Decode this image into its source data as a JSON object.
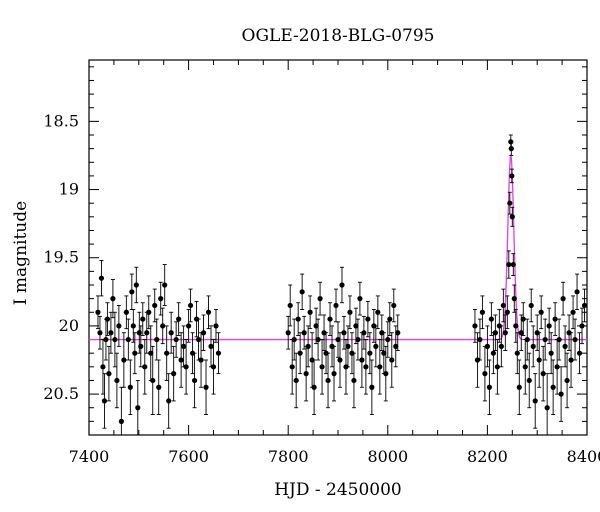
{
  "chart_data": {
    "type": "scatter",
    "title": "OGLE-2018-BLG-0795",
    "xlabel": "HJD - 2450000",
    "ylabel": "I magnitude",
    "xlim": [
      7400,
      8400
    ],
    "ylim": [
      20.8,
      18.05
    ],
    "y_inverted": true,
    "grid": false,
    "xticks": [
      7400,
      7600,
      7800,
      8000,
      8200,
      8400
    ],
    "xtick_labels": [
      "7400",
      "7600",
      "7800",
      "8000",
      "8200",
      "8400"
    ],
    "yticks": [
      18.5,
      19,
      19.5,
      20,
      20.5
    ],
    "ytick_labels": [
      "18.5",
      "19",
      "19.5",
      "20",
      "20.5"
    ],
    "colors": {
      "points": "#000000",
      "model": "#e040e0"
    },
    "model": {
      "baseline": 20.1,
      "peak_time": 8247,
      "peak_mag": 18.75,
      "width_days": 6
    },
    "series": [
      {
        "points": [
          [
            7418,
            19.9,
            0.12
          ],
          [
            7422,
            20.05,
            0.12
          ],
          [
            7425,
            19.65,
            0.13
          ],
          [
            7428,
            20.3,
            0.2
          ],
          [
            7431,
            20.55,
            0.2
          ],
          [
            7434,
            20.1,
            0.15
          ],
          [
            7437,
            19.95,
            0.12
          ],
          [
            7440,
            20.35,
            0.2
          ],
          [
            7444,
            20.05,
            0.15
          ],
          [
            7448,
            19.8,
            0.14
          ],
          [
            7452,
            20.1,
            0.2
          ],
          [
            7456,
            20.4,
            0.2
          ],
          [
            7460,
            20.0,
            0.15
          ],
          [
            7465,
            20.7,
            0.25
          ],
          [
            7470,
            20.25,
            0.2
          ],
          [
            7475,
            19.9,
            0.12
          ],
          [
            7479,
            20.1,
            0.15
          ],
          [
            7483,
            20.45,
            0.2
          ],
          [
            7486,
            19.75,
            0.13
          ],
          [
            7489,
            20.0,
            0.12
          ],
          [
            7492,
            20.2,
            0.15
          ],
          [
            7495,
            19.7,
            0.13
          ],
          [
            7498,
            20.6,
            0.2
          ],
          [
            7501,
            20.05,
            0.15
          ],
          [
            7504,
            20.15,
            0.15
          ],
          [
            7508,
            19.95,
            0.12
          ],
          [
            7512,
            20.3,
            0.2
          ],
          [
            7516,
            20.05,
            0.15
          ],
          [
            7520,
            19.9,
            0.12
          ],
          [
            7524,
            20.2,
            0.2
          ],
          [
            7528,
            20.4,
            0.25
          ],
          [
            7532,
            19.85,
            0.12
          ],
          [
            7536,
            20.1,
            0.15
          ],
          [
            7540,
            20.45,
            0.2
          ],
          [
            7544,
            19.8,
            0.12
          ],
          [
            7548,
            20.0,
            0.13
          ],
          [
            7552,
            19.7,
            0.15
          ],
          [
            7556,
            20.2,
            0.2
          ],
          [
            7560,
            20.55,
            0.2
          ],
          [
            7565,
            20.05,
            0.15
          ],
          [
            7570,
            20.35,
            0.2
          ],
          [
            7575,
            20.1,
            0.13
          ],
          [
            7580,
            19.95,
            0.12
          ],
          [
            7585,
            20.25,
            0.2
          ],
          [
            7590,
            20.15,
            0.15
          ],
          [
            7595,
            20.3,
            0.2
          ],
          [
            7600,
            20.0,
            0.12
          ],
          [
            7604,
            19.85,
            0.12
          ],
          [
            7608,
            20.2,
            0.15
          ],
          [
            7612,
            20.4,
            0.2
          ],
          [
            7616,
            19.95,
            0.13
          ],
          [
            7620,
            20.1,
            0.15
          ],
          [
            7625,
            20.25,
            0.2
          ],
          [
            7630,
            20.05,
            0.13
          ],
          [
            7635,
            20.45,
            0.2
          ],
          [
            7640,
            19.9,
            0.12
          ],
          [
            7645,
            20.15,
            0.15
          ],
          [
            7650,
            20.3,
            0.2
          ],
          [
            7655,
            20.0,
            0.12
          ],
          [
            7660,
            20.2,
            0.15
          ],
          [
            7800,
            20.05,
            0.12
          ],
          [
            7804,
            19.85,
            0.15
          ],
          [
            7808,
            20.3,
            0.2
          ],
          [
            7812,
            20.1,
            0.15
          ],
          [
            7816,
            20.4,
            0.2
          ],
          [
            7820,
            19.95,
            0.12
          ],
          [
            7824,
            20.2,
            0.15
          ],
          [
            7828,
            19.75,
            0.13
          ],
          [
            7832,
            20.05,
            0.12
          ],
          [
            7836,
            20.35,
            0.2
          ],
          [
            7840,
            20.15,
            0.15
          ],
          [
            7844,
            19.9,
            0.12
          ],
          [
            7848,
            20.25,
            0.2
          ],
          [
            7852,
            20.45,
            0.2
          ],
          [
            7856,
            20.0,
            0.13
          ],
          [
            7860,
            20.1,
            0.15
          ],
          [
            7864,
            19.8,
            0.12
          ],
          [
            7868,
            20.3,
            0.2
          ],
          [
            7872,
            20.05,
            0.13
          ],
          [
            7876,
            20.2,
            0.15
          ],
          [
            7880,
            20.4,
            0.2
          ],
          [
            7884,
            19.95,
            0.12
          ],
          [
            7888,
            20.15,
            0.15
          ],
          [
            7892,
            20.35,
            0.2
          ],
          [
            7896,
            19.85,
            0.12
          ],
          [
            7900,
            20.1,
            0.13
          ],
          [
            7904,
            20.25,
            0.2
          ],
          [
            7908,
            19.7,
            0.13
          ],
          [
            7912,
            20.05,
            0.12
          ],
          [
            7916,
            20.3,
            0.2
          ],
          [
            7920,
            20.15,
            0.15
          ],
          [
            7924,
            19.9,
            0.12
          ],
          [
            7928,
            20.2,
            0.15
          ],
          [
            7932,
            20.4,
            0.2
          ],
          [
            7936,
            20.0,
            0.13
          ],
          [
            7940,
            20.1,
            0.15
          ],
          [
            7944,
            19.8,
            0.12
          ],
          [
            7948,
            20.25,
            0.2
          ],
          [
            7952,
            20.05,
            0.12
          ],
          [
            7956,
            20.3,
            0.2
          ],
          [
            7960,
            19.95,
            0.13
          ],
          [
            7964,
            20.2,
            0.15
          ],
          [
            7968,
            20.45,
            0.2
          ],
          [
            7972,
            20.0,
            0.12
          ],
          [
            7976,
            20.15,
            0.15
          ],
          [
            7980,
            19.9,
            0.12
          ],
          [
            7984,
            20.3,
            0.2
          ],
          [
            7988,
            20.05,
            0.13
          ],
          [
            7992,
            20.2,
            0.15
          ],
          [
            7996,
            20.35,
            0.2
          ],
          [
            8000,
            20.1,
            0.13
          ],
          [
            8004,
            19.95,
            0.12
          ],
          [
            8008,
            20.25,
            0.2
          ],
          [
            8012,
            19.85,
            0.12
          ],
          [
            8016,
            20.15,
            0.15
          ],
          [
            8020,
            20.05,
            0.13
          ],
          [
            8175,
            20.0,
            0.12
          ],
          [
            8180,
            20.25,
            0.2
          ],
          [
            8185,
            20.1,
            0.15
          ],
          [
            8190,
            19.9,
            0.12
          ],
          [
            8195,
            20.35,
            0.2
          ],
          [
            8200,
            20.15,
            0.15
          ],
          [
            8204,
            20.45,
            0.2
          ],
          [
            8208,
            19.95,
            0.12
          ],
          [
            8212,
            20.2,
            0.15
          ],
          [
            8216,
            20.05,
            0.13
          ],
          [
            8220,
            20.3,
            0.2
          ],
          [
            8224,
            20.0,
            0.12
          ],
          [
            8228,
            20.15,
            0.15
          ],
          [
            8232,
            19.85,
            0.12
          ],
          [
            8236,
            20.05,
            0.13
          ],
          [
            8240,
            19.9,
            0.12
          ],
          [
            8243,
            19.55,
            0.1
          ],
          [
            8245,
            19.1,
            0.08
          ],
          [
            8247,
            18.65,
            0.05
          ],
          [
            8248,
            18.7,
            0.05
          ],
          [
            8249,
            18.9,
            0.05
          ],
          [
            8250,
            19.2,
            0.07
          ],
          [
            8252,
            19.55,
            0.08
          ],
          [
            8254,
            19.8,
            0.1
          ],
          [
            8257,
            20.0,
            0.12
          ],
          [
            8260,
            20.2,
            0.15
          ],
          [
            8264,
            20.45,
            0.2
          ],
          [
            8268,
            20.05,
            0.13
          ],
          [
            8272,
            19.95,
            0.12
          ],
          [
            8276,
            20.3,
            0.2
          ],
          [
            8280,
            20.1,
            0.15
          ],
          [
            8284,
            20.4,
            0.2
          ],
          [
            8288,
            19.85,
            0.12
          ],
          [
            8292,
            20.15,
            0.15
          ],
          [
            8296,
            20.55,
            0.2
          ],
          [
            8300,
            20.05,
            0.13
          ],
          [
            8304,
            20.25,
            0.2
          ],
          [
            8308,
            19.9,
            0.12
          ],
          [
            8312,
            20.35,
            0.2
          ],
          [
            8316,
            20.1,
            0.15
          ],
          [
            8320,
            20.6,
            0.25
          ],
          [
            8324,
            20.0,
            0.13
          ],
          [
            8328,
            20.2,
            0.15
          ],
          [
            8332,
            20.45,
            0.2
          ],
          [
            8336,
            19.95,
            0.12
          ],
          [
            8340,
            20.3,
            0.2
          ],
          [
            8344,
            20.1,
            0.15
          ],
          [
            8348,
            20.5,
            0.2
          ],
          [
            8352,
            19.8,
            0.12
          ],
          [
            8356,
            20.15,
            0.15
          ],
          [
            8360,
            20.4,
            0.2
          ],
          [
            8364,
            20.05,
            0.13
          ],
          [
            8368,
            20.25,
            0.2
          ],
          [
            8372,
            19.9,
            0.12
          ],
          [
            8376,
            20.1,
            0.15
          ],
          [
            8380,
            19.75,
            0.13
          ],
          [
            8385,
            20.2,
            0.15
          ],
          [
            8390,
            20.0,
            0.13
          ],
          [
            8395,
            19.85,
            0.12
          ]
        ]
      }
    ]
  }
}
